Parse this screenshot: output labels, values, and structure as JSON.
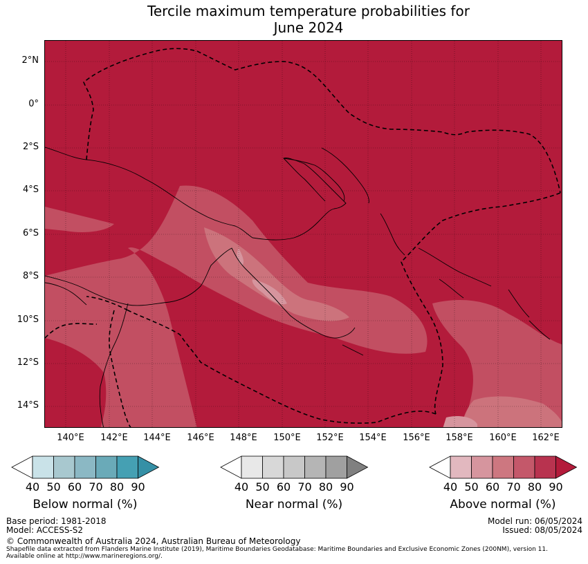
{
  "title_line1": "Tercile maximum temperature probabilities for",
  "title_line2": "June 2024",
  "map": {
    "lat_labels": [
      "2°N",
      "0°",
      "2°S",
      "4°S",
      "6°S",
      "8°S",
      "10°S",
      "12°S",
      "14°S"
    ],
    "lon_labels": [
      "140°E",
      "142°E",
      "144°E",
      "146°E",
      "148°E",
      "150°E",
      "152°E",
      "154°E",
      "156°E",
      "158°E",
      "160°E",
      "162°E"
    ],
    "background_color": "#b31b3b"
  },
  "legends": [
    {
      "title": "Below normal (%)",
      "ticks": [
        "40",
        "50",
        "60",
        "70",
        "80",
        "90"
      ],
      "colors": [
        "#ffffff",
        "#c9e2e8",
        "#a8c8cf",
        "#8bb8c4",
        "#6aaab8",
        "#45a0b3",
        "#3590a6"
      ]
    },
    {
      "title": "Near normal (%)",
      "ticks": [
        "40",
        "50",
        "60",
        "70",
        "80",
        "90"
      ],
      "colors": [
        "#ffffff",
        "#e8e8e8",
        "#d8d8d8",
        "#c8c8c8",
        "#b5b5b5",
        "#a0a0a0",
        "#808080"
      ]
    },
    {
      "title": "Above normal (%)",
      "ticks": [
        "40",
        "50",
        "60",
        "70",
        "80",
        "90"
      ],
      "colors": [
        "#ffffff",
        "#e2b8bf",
        "#d6959e",
        "#cd7780",
        "#c4586a",
        "#b8334f",
        "#b31b3b"
      ]
    }
  ],
  "footer": {
    "base_period": "Base period: 1981-2018",
    "model": "Model: ACCESS-S2",
    "model_run": "Model run: 06/05/2024",
    "issued": "Issued: 08/05/2024",
    "copyright": "© Commonwealth of Australia 2024, Australian Bureau of Meteorology",
    "shapefile_line1": "Shapefile data extracted from Flanders Marine Institute (2019), Maritime Boundaries Geodatabase: Maritime Boundaries and Exclusive Economic Zones (200NM), version 11.",
    "shapefile_line2": "Available online at http://www.marineregions.org/."
  }
}
